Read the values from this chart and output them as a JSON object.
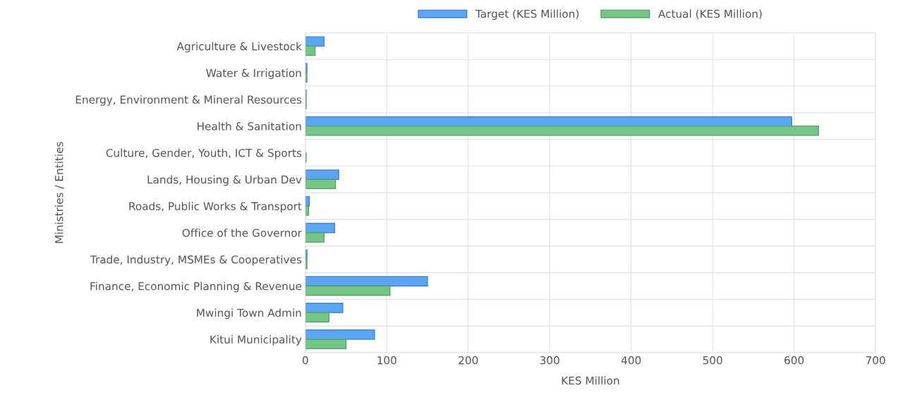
{
  "chart_data": {
    "type": "bar",
    "orientation": "horizontal",
    "xlabel": "KES Million",
    "ylabel": "Ministries / Entities",
    "categories": [
      "Agriculture & Livestock",
      "Water & Irrigation",
      "Energy, Environment & Mineral Resources",
      "Health & Sanitation",
      "Culture, Gender, Youth, ICT & Sports",
      "Lands, Housing & Urban Dev",
      "Roads, Public Works & Transport",
      "Office of the Governor",
      "Trade, Industry, MSMEs & Cooperatives",
      "Finance, Economic Planning & Revenue",
      "Mwingi Town Admin",
      "Kitui Municipality"
    ],
    "series": [
      {
        "name": "Target (KES Million)",
        "color": "#5aa5f5",
        "values": [
          23,
          2,
          1,
          597,
          0,
          41,
          5,
          36,
          2,
          150,
          46,
          85
        ]
      },
      {
        "name": "Actual (KES Million)",
        "color": "#74c686",
        "values": [
          12,
          2,
          1,
          630,
          1,
          37,
          4,
          23,
          2,
          104,
          29,
          50
        ]
      }
    ],
    "xlim": [
      0,
      700
    ],
    "xticks": [
      0,
      100,
      200,
      300,
      400,
      500,
      600,
      700
    ],
    "grid": true,
    "legend": "top"
  }
}
